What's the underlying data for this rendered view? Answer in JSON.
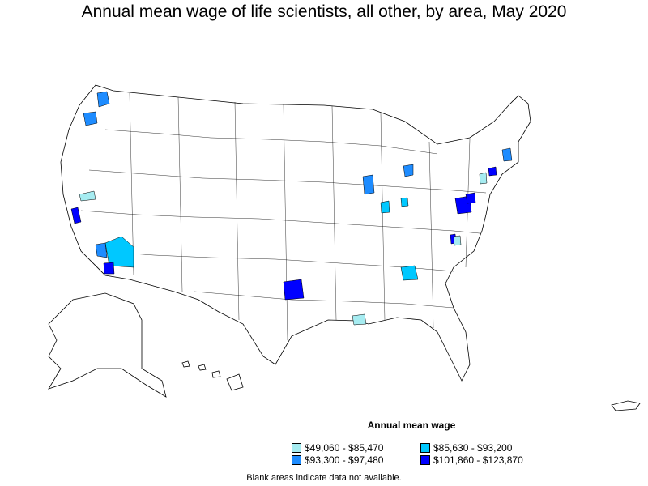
{
  "title": "Annual mean wage of life scientists, all other, by area, May 2020",
  "legend": {
    "title": "Annual mean wage",
    "items": [
      {
        "label": "$49,060 - $85,470",
        "color": "#a6ecf1"
      },
      {
        "label": "$85,630 - $93,200",
        "color": "#00c8ff"
      },
      {
        "label": "$93,300 - $97,480",
        "color": "#1e8cff"
      },
      {
        "label": "$101,860 - $123,870",
        "color": "#0000ff"
      }
    ]
  },
  "note": "Blank areas indicate data not available."
}
